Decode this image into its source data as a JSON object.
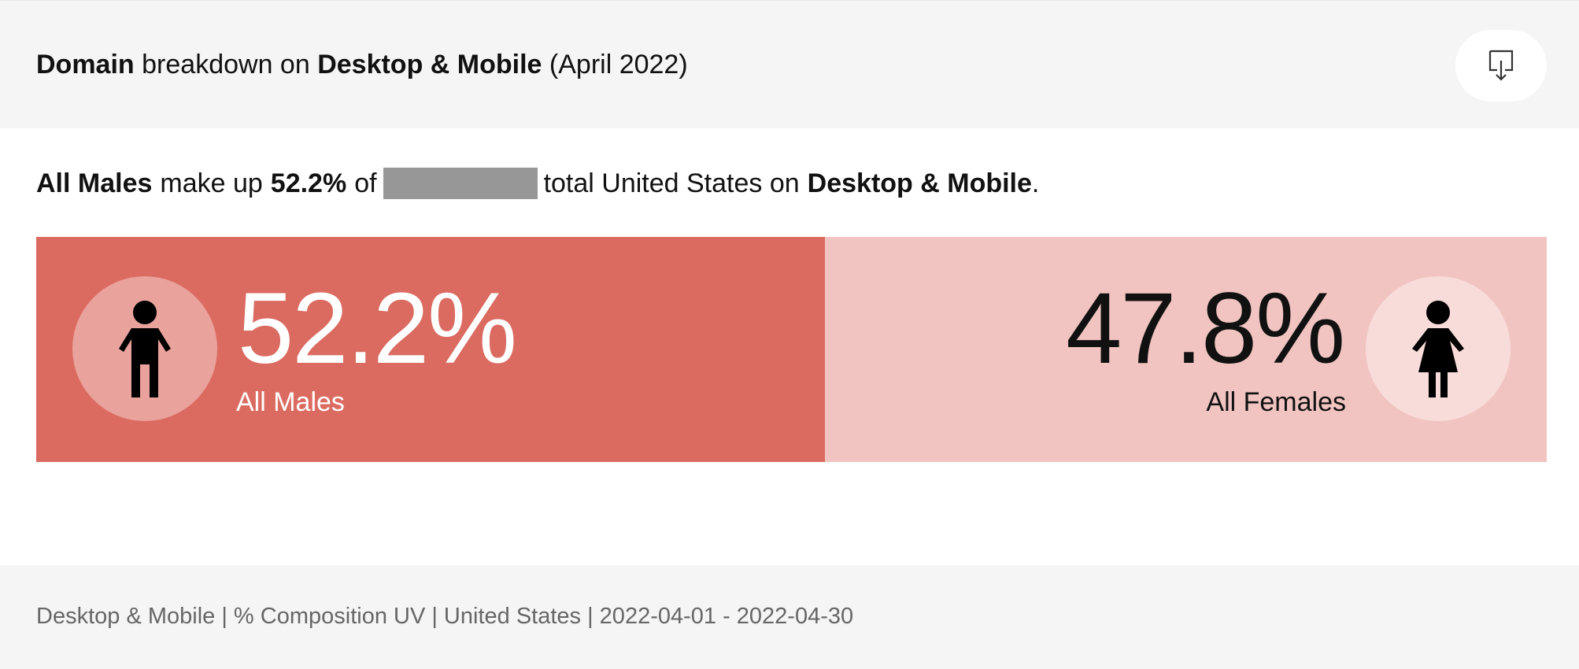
{
  "header": {
    "title_bold_1": "Domain",
    "title_mid": "breakdown on",
    "title_bold_2": "Desktop & Mobile",
    "title_tail": "(April 2022)",
    "download_icon": "download-icon"
  },
  "summary": {
    "subject": "All Males",
    "verb": "make up",
    "value": "52.2%",
    "of": "of",
    "rest": "total United States on",
    "platform": "Desktop & Mobile",
    "period": "."
  },
  "chart_data": {
    "type": "bar",
    "categories": [
      "All Males",
      "All Females"
    ],
    "values": [
      52.2,
      47.8
    ],
    "labels": [
      "52.2%",
      "47.8%"
    ],
    "icons": [
      "male-person-icon",
      "female-person-icon"
    ],
    "colors": [
      "#db6b61",
      "#f1c4c1"
    ]
  },
  "footer": {
    "text": "Desktop & Mobile | % Composition UV | United States | 2022-04-01 - 2022-04-30"
  }
}
